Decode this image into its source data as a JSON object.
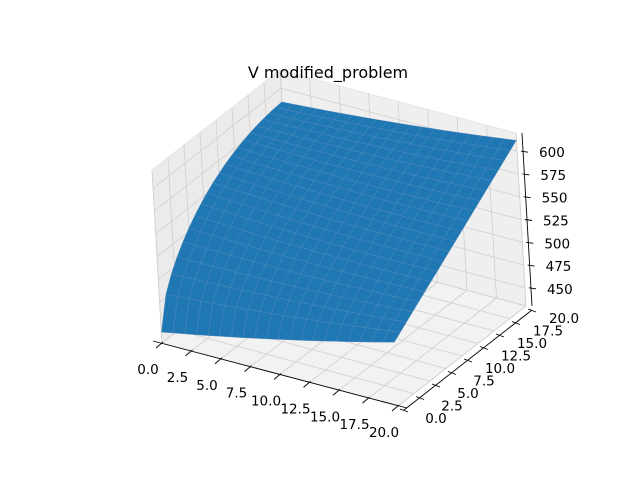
{
  "chart_data": {
    "type": "surface",
    "title": "V modified_problem",
    "xlabel": "",
    "ylabel": "",
    "zlabel": "",
    "grid": true,
    "color": "#1f77b4",
    "edge_color": "#5a8ab8",
    "pane_color": "#f2f2f2",
    "xlim": [
      0,
      20
    ],
    "ylim": [
      0,
      20
    ],
    "zlim": [
      430,
      620
    ],
    "x_ticks": [
      "0.0",
      "2.5",
      "5.0",
      "7.5",
      "10.0",
      "12.5",
      "15.0",
      "17.5",
      "20.0"
    ],
    "y_ticks": [
      "0.0",
      "2.5",
      "5.0",
      "7.5",
      "10.0",
      "12.5",
      "15.0",
      "17.5",
      "20.0"
    ],
    "z_ticks": [
      "450",
      "475",
      "500",
      "525",
      "550",
      "575",
      "600"
    ],
    "grid_size": 21,
    "corner_values": {
      "x0_y0": 442,
      "x20_y0": 500,
      "x0_y20": 585,
      "x20_y20": 612
    }
  }
}
